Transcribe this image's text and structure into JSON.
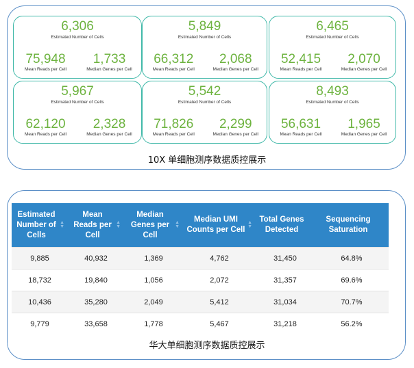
{
  "tenx_panel": {
    "caption": "10X 单细胞测序数据质控展示",
    "cards": [
      {
        "cells": "6,306",
        "cells_label": "Estimated Number of Cells",
        "reads": "75,948",
        "reads_label": "Mean Reads per Cell",
        "genes": "1,733",
        "genes_label": "Median Genes per Cell"
      },
      {
        "cells": "5,849",
        "cells_label": "Estimated Number of Cells",
        "reads": "66,312",
        "reads_label": "Mean Reads per Cell",
        "genes": "2,068",
        "genes_label": "Median Genes per Cell"
      },
      {
        "cells": "6,465",
        "cells_label": "Estimated Number of Cells",
        "reads": "52,415",
        "reads_label": "Mean Reads per Cell",
        "genes": "2,070",
        "genes_label": "Median Genes per Cell"
      },
      {
        "cells": "5,967",
        "cells_label": "Estimated Number of Cells",
        "reads": "62,120",
        "reads_label": "Mean Reads per Cell",
        "genes": "2,328",
        "genes_label": "Median Genes per Cell"
      },
      {
        "cells": "5,542",
        "cells_label": "Estimated Number of Cells",
        "reads": "71,826",
        "reads_label": "Mean Reads per Cell",
        "genes": "2,299",
        "genes_label": "Median Genes per Cell"
      },
      {
        "cells": "8,493",
        "cells_label": "Estimated Number of Cells",
        "reads": "56,631",
        "reads_label": "Mean Reads per Cell",
        "genes": "1,965",
        "genes_label": "Median Genes per Cell"
      }
    ]
  },
  "bgi_panel": {
    "caption": "华大单细胞测序数据质控展示",
    "headers": [
      "Estimated Number of Cells",
      "Mean Reads per Cell",
      "Median Genes per Cell",
      "Median UMI Counts per Cell",
      "Total Genes Detected",
      "Sequencing Saturation"
    ],
    "rows": [
      [
        "9,885",
        "40,932",
        "1,369",
        "4,762",
        "31,450",
        "64.8%"
      ],
      [
        "18,732",
        "19,840",
        "1,056",
        "2,072",
        "31,357",
        "69.6%"
      ],
      [
        "10,436",
        "35,280",
        "2,049",
        "5,412",
        "31,034",
        "70.7%"
      ],
      [
        "9,779",
        "33,658",
        "1,778",
        "5,467",
        "31,218",
        "56.2%"
      ]
    ],
    "sort_icon": "sort-arrows-icon"
  },
  "colors": {
    "metric_green": "#6db33f",
    "card_border": "#3fb8a8",
    "panel_border": "#5b8fc7",
    "header_blue": "#2f86c8"
  }
}
